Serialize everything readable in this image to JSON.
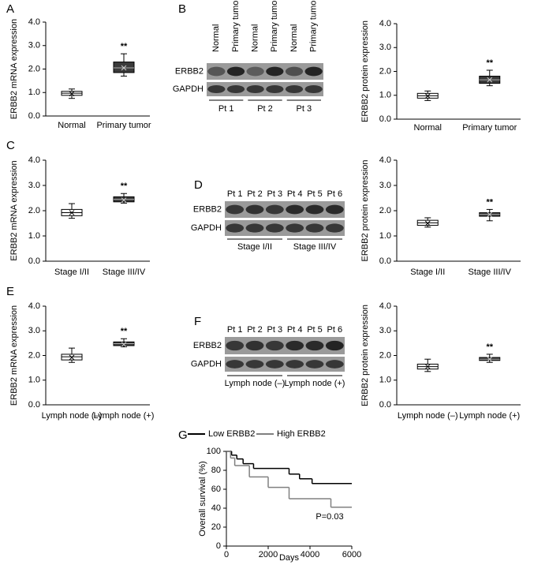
{
  "panel_labels": [
    "A",
    "B",
    "C",
    "D",
    "E",
    "F",
    "G"
  ],
  "chart_data": [
    {
      "type": "box",
      "ylabel": "ERBB2 mRNA expression",
      "categories": [
        "Normal",
        "Primary tumor"
      ],
      "min": [
        0.75,
        1.7
      ],
      "q1": [
        0.88,
        1.85
      ],
      "median": [
        0.97,
        2.05
      ],
      "q3": [
        1.05,
        2.3
      ],
      "max": [
        1.15,
        2.65
      ],
      "mean": [
        0.95,
        2.05
      ],
      "annotations": [
        null,
        "**"
      ],
      "box_colors": [
        "#ffffff",
        "#3a3a3a"
      ],
      "ylim": [
        0,
        4
      ],
      "yticks": [
        {
          "value": 0,
          "label": "0.0"
        },
        {
          "value": 1,
          "label": "1.0"
        },
        {
          "value": 2,
          "label": "2.0"
        },
        {
          "value": 3,
          "label": "3.0"
        },
        {
          "value": 4,
          "label": "4.0"
        }
      ]
    },
    {
      "type": "box",
      "ylabel": "ERBB2 protein expression",
      "categories": [
        "Normal",
        "Primary tumor"
      ],
      "min": [
        0.78,
        1.4
      ],
      "q1": [
        0.88,
        1.5
      ],
      "median": [
        0.98,
        1.65
      ],
      "q3": [
        1.08,
        1.8
      ],
      "max": [
        1.18,
        2.05
      ],
      "mean": [
        0.97,
        1.65
      ],
      "annotations": [
        null,
        "**"
      ],
      "box_colors": [
        "#ffffff",
        "#3a3a3a"
      ],
      "ylim": [
        0,
        4
      ],
      "yticks": [
        {
          "value": 0,
          "label": "0.0"
        },
        {
          "value": 1,
          "label": "1.0"
        },
        {
          "value": 2,
          "label": "2.0"
        },
        {
          "value": 3,
          "label": "3.0"
        },
        {
          "value": 4,
          "label": "4.0"
        }
      ]
    },
    {
      "type": "box",
      "ylabel": "ERBB2 mRNA expression",
      "categories": [
        "Stage I/II",
        "Stage III/IV"
      ],
      "min": [
        1.7,
        2.3
      ],
      "q1": [
        1.8,
        2.35
      ],
      "median": [
        1.92,
        2.45
      ],
      "q3": [
        2.05,
        2.55
      ],
      "max": [
        2.28,
        2.68
      ],
      "mean": [
        1.92,
        2.42
      ],
      "annotations": [
        null,
        "**"
      ],
      "box_colors": [
        "#ffffff",
        "#3a3a3a"
      ],
      "ylim": [
        0,
        4
      ],
      "yticks": [
        {
          "value": 0,
          "label": "0.0"
        },
        {
          "value": 1,
          "label": "1.0"
        },
        {
          "value": 2,
          "label": "2.0"
        },
        {
          "value": 3,
          "label": "3.0"
        },
        {
          "value": 4,
          "label": "4.0"
        }
      ]
    },
    {
      "type": "box",
      "ylabel": "ERBB2 protein expression",
      "categories": [
        "Stage I/II",
        "Stage III/IV"
      ],
      "min": [
        1.35,
        1.6
      ],
      "q1": [
        1.42,
        1.78
      ],
      "median": [
        1.52,
        1.85
      ],
      "q3": [
        1.62,
        1.92
      ],
      "max": [
        1.72,
        2.05
      ],
      "mean": [
        1.5,
        1.85
      ],
      "annotations": [
        null,
        "**"
      ],
      "box_colors": [
        "#ffffff",
        "#3a3a3a"
      ],
      "ylim": [
        0,
        4
      ],
      "yticks": [
        {
          "value": 0,
          "label": "0.0"
        },
        {
          "value": 1,
          "label": "1.0"
        },
        {
          "value": 2,
          "label": "2.0"
        },
        {
          "value": 3,
          "label": "3.0"
        },
        {
          "value": 4,
          "label": "4.0"
        }
      ]
    },
    {
      "type": "box",
      "ylabel": "ERBB2 mRNA expression",
      "categories": [
        "Lymph node (–)",
        "Lymph node (+)"
      ],
      "min": [
        1.72,
        2.35
      ],
      "q1": [
        1.82,
        2.4
      ],
      "median": [
        1.95,
        2.48
      ],
      "q3": [
        2.05,
        2.55
      ],
      "max": [
        2.3,
        2.68
      ],
      "mean": [
        1.92,
        2.45
      ],
      "annotations": [
        null,
        "**"
      ],
      "box_colors": [
        "#ffffff",
        "#3a3a3a"
      ],
      "ylim": [
        0,
        4
      ],
      "yticks": [
        {
          "value": 0,
          "label": "0.0"
        },
        {
          "value": 1,
          "label": "1.0"
        },
        {
          "value": 2,
          "label": "2.0"
        },
        {
          "value": 3,
          "label": "3.0"
        },
        {
          "value": 4,
          "label": "4.0"
        }
      ]
    },
    {
      "type": "box",
      "ylabel": "ERBB2 protein expression",
      "categories": [
        "Lymph node (–)",
        "Lymph node (+)"
      ],
      "min": [
        1.35,
        1.72
      ],
      "q1": [
        1.45,
        1.8
      ],
      "median": [
        1.55,
        1.85
      ],
      "q3": [
        1.65,
        1.92
      ],
      "max": [
        1.85,
        2.05
      ],
      "mean": [
        1.55,
        1.85
      ],
      "annotations": [
        null,
        "**"
      ],
      "box_colors": [
        "#ffffff",
        "#3a3a3a"
      ],
      "ylim": [
        0,
        4
      ],
      "yticks": [
        {
          "value": 0,
          "label": "0.0"
        },
        {
          "value": 1,
          "label": "1.0"
        },
        {
          "value": 2,
          "label": "2.0"
        },
        {
          "value": 3,
          "label": "3.0"
        },
        {
          "value": 4,
          "label": "4.0"
        }
      ]
    },
    {
      "type": "step",
      "xlabel": "Days",
      "ylabel": "Overall survival (%)",
      "annotation": "P=0.03",
      "xlim": [
        0,
        6000
      ],
      "xticks": [
        0,
        2000,
        4000,
        6000
      ],
      "ylim": [
        0,
        100
      ],
      "yticks": [
        0,
        20,
        40,
        60,
        80,
        100
      ],
      "series": [
        {
          "name": "Low ERBB2",
          "color": "#000000",
          "x": [
            0,
            250,
            500,
            800,
            1300,
            3000,
            3500,
            4100,
            6000
          ],
          "values": [
            100,
            96,
            92,
            87,
            82,
            76,
            71,
            66,
            66
          ]
        },
        {
          "name": "High ERBB2",
          "color": "#808080",
          "x": [
            0,
            200,
            400,
            1100,
            2000,
            3000,
            5000,
            6000
          ],
          "values": [
            100,
            93,
            85,
            73,
            62,
            50,
            41,
            41
          ]
        }
      ]
    }
  ],
  "blots": [
    {
      "lanes": [
        "Normal",
        "Primary tumor",
        "Normal",
        "Primary tumor",
        "Normal",
        "Primary tumor"
      ],
      "rows": [
        "ERBB2",
        "GAPDH"
      ],
      "groups": [
        "Pt 1",
        "Pt 2",
        "Pt 3"
      ]
    },
    {
      "lanes": [
        "Pt 1",
        "Pt 2",
        "Pt 3",
        "Pt 4",
        "Pt 5",
        "Pt 6"
      ],
      "rows": [
        "ERBB2",
        "GAPDH"
      ],
      "groups": [
        "Stage I/II",
        "Stage III/IV"
      ]
    },
    {
      "lanes": [
        "Pt 1",
        "Pt 2",
        "Pt 3",
        "Pt 4",
        "Pt 5",
        "Pt 6"
      ],
      "rows": [
        "ERBB2",
        "GAPDH"
      ],
      "groups": [
        "Lymph node (–)",
        "Lymph node (+)"
      ]
    }
  ]
}
